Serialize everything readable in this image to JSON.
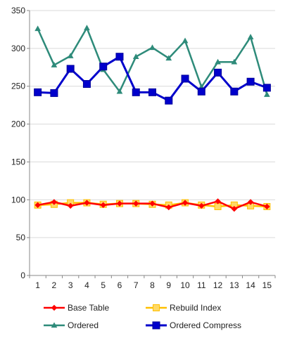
{
  "chart_data": {
    "type": "line",
    "title": "",
    "xlabel": "",
    "ylabel": "",
    "x": [
      1,
      2,
      3,
      4,
      5,
      6,
      7,
      8,
      9,
      10,
      11,
      12,
      13,
      14,
      15
    ],
    "ylim": [
      0,
      350
    ],
    "yticks": [
      0,
      50,
      100,
      150,
      200,
      250,
      300,
      350
    ],
    "grid": true,
    "legend_position": "bottom",
    "series": [
      {
        "name": "Base Table",
        "color": "#ff0000",
        "marker": "diamond",
        "values": [
          93,
          97,
          92,
          96,
          93,
          95,
          95,
          95,
          90,
          96,
          92,
          98,
          88,
          97,
          91
        ]
      },
      {
        "name": "Rebuild Index",
        "color": "#ffc000",
        "marker": "square",
        "values": [
          93,
          94,
          96,
          96,
          94,
          95,
          95,
          94,
          93,
          96,
          93,
          91,
          93,
          92,
          91
        ]
      },
      {
        "name": "Ordered",
        "color": "#2e8b7a",
        "marker": "triangle",
        "values": [
          326,
          278,
          290,
          327,
          272,
          243,
          289,
          301,
          287,
          310,
          249,
          282,
          282,
          315,
          239
        ]
      },
      {
        "name": "Ordered Compress",
        "color": "#0000cc",
        "marker": "square",
        "values": [
          242,
          241,
          273,
          253,
          276,
          289,
          242,
          242,
          231,
          260,
          243,
          268,
          243,
          256,
          248
        ]
      }
    ]
  }
}
